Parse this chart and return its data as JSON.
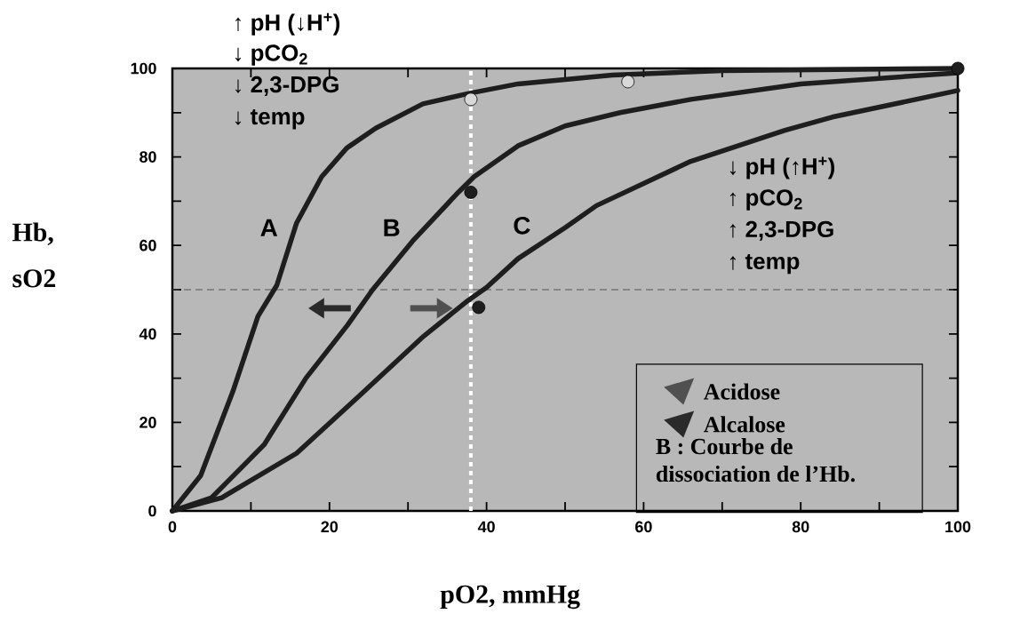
{
  "chart_data": {
    "type": "line",
    "xlabel": "pO2, mmHg",
    "ylabel": "Hb, sO2",
    "xlim": [
      0,
      100
    ],
    "ylim": [
      0,
      100
    ],
    "xticks": [
      0,
      {
        "value": 10,
        "label": null
      },
      20,
      {
        "value": 30,
        "label": null
      },
      40,
      {
        "value": 50,
        "label": null
      },
      60,
      {
        "value": 70,
        "label": null
      },
      80,
      {
        "value": 90,
        "label": null
      },
      100
    ],
    "yticks": [
      0,
      {
        "value": 10,
        "label": null
      },
      20,
      {
        "value": 30,
        "label": null
      },
      40,
      {
        "value": 50,
        "label": null
      },
      60,
      {
        "value": 70,
        "label": null
      },
      80,
      {
        "value": 90,
        "label": null
      },
      100
    ],
    "series": [
      {
        "name": "A",
        "color": "#1e1e1e",
        "x": [
          0,
          3.6,
          7.7,
          10.9,
          13.3,
          15.8,
          19,
          22.2,
          25.9,
          31.9,
          37.6,
          44,
          56,
          70,
          100
        ],
        "values": [
          0,
          8,
          27,
          44,
          51,
          65,
          75.5,
          82,
          86.5,
          92,
          94.3,
          96.5,
          98.5,
          99.5,
          100
        ]
      },
      {
        "name": "B",
        "color": "#1e1e1e",
        "x": [
          0,
          5,
          11.7,
          17,
          22.3,
          25.5,
          30.6,
          36.4,
          38.4,
          44,
          50,
          57,
          66,
          80,
          100
        ],
        "values": [
          0,
          3,
          15,
          30,
          42,
          50,
          61,
          72,
          75.5,
          82.5,
          87,
          90,
          93,
          96.5,
          99
        ]
      },
      {
        "name": "C",
        "color": "#1e1e1e",
        "x": [
          0,
          6.3,
          15.8,
          23.8,
          32,
          37.6,
          40,
          44,
          50,
          54,
          66,
          78,
          84,
          100
        ],
        "values": [
          0,
          3,
          13,
          26,
          39.5,
          47.5,
          50.5,
          57,
          64,
          69,
          79,
          86,
          89,
          95
        ]
      },
      {
        "type": "scatter",
        "marker": "circle",
        "color": "#d8d8d8",
        "x": [
          38,
          58
        ],
        "values": [
          93,
          97
        ]
      },
      {
        "type": "scatter",
        "marker": "circle",
        "color": "#1e1e1e",
        "x": [
          38,
          39,
          100
        ],
        "values": [
          72,
          46,
          100
        ]
      }
    ],
    "ref_lines": [
      {
        "axis": "y",
        "value": 50,
        "color": "#555555",
        "line_style": "dashed"
      },
      {
        "axis": "x",
        "value": 38,
        "color": "#ffffff",
        "line_style": "dotted"
      }
    ],
    "annotations": [
      "↑ pH (↓H$^{+}$)",
      "↓ pCO$_{2}$",
      "↓ 2,3-DPG",
      "↓ temp",
      "↓ pH (↑H$^{+}$)",
      "↑ pCO$_{2}$",
      "↑ 2,3-DPG",
      "↑ temp",
      "Acidose",
      "Alcalose",
      "B : Courbe de dissociation de l’Hb."
    ]
  }
}
